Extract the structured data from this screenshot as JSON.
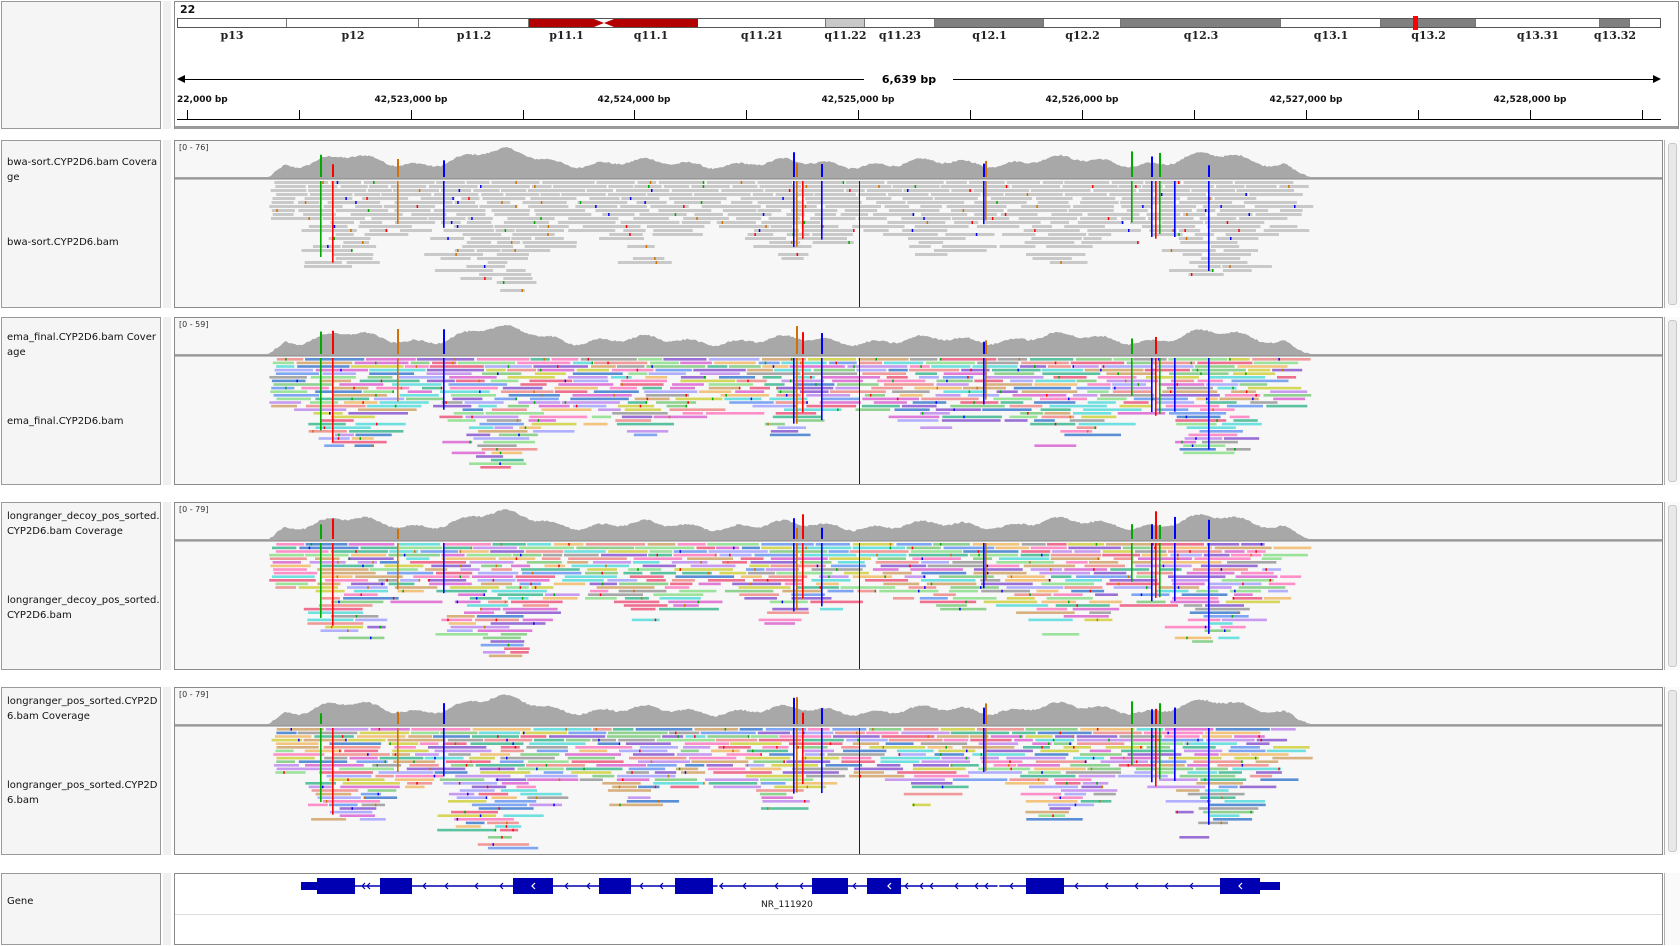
{
  "chromosome": "22",
  "span_label": "6,639 bp",
  "cytobands": [
    {
      "name": "p13",
      "stain": "gneg"
    },
    {
      "name": "p12",
      "stain": "gneg"
    },
    {
      "name": "p11.2",
      "stain": "gneg"
    },
    {
      "name": "p11.1",
      "stain": "acen"
    },
    {
      "name": "q11.1",
      "stain": "acen"
    },
    {
      "name": "q11.21",
      "stain": "gneg"
    },
    {
      "name": "q11.22",
      "stain": "gpos25"
    },
    {
      "name": "q11.23",
      "stain": "gneg"
    },
    {
      "name": "q12.1",
      "stain": "gpos50"
    },
    {
      "name": "q12.2",
      "stain": "gneg"
    },
    {
      "name": "q12.3",
      "stain": "gpos50"
    },
    {
      "name": "q13.1",
      "stain": "gneg"
    },
    {
      "name": "q13.2",
      "stain": "gpos50"
    },
    {
      "name": "q13.31",
      "stain": "gneg"
    },
    {
      "name": "q13.32",
      "stain": "gpos50"
    }
  ],
  "ruler_ticks": [
    "22,000 bp",
    "42,523,000 bp",
    "42,524,000 bp",
    "42,525,000 bp",
    "42,526,000 bp",
    "42,527,000 bp",
    "42,528,000 bp"
  ],
  "tracks": [
    {
      "coverage_name": "bwa-sort.CYP2D6.bam Coverage",
      "alignment_name": "bwa-sort.CYP2D6.bam",
      "range": "[0 - 76]",
      "style": "gray"
    },
    {
      "coverage_name": "ema_final.CYP2D6.bam Coverage",
      "alignment_name": "ema_final.CYP2D6.bam",
      "range": "[0 - 59]",
      "style": "color"
    },
    {
      "coverage_name": "longranger_decoy_pos_sorted.CYP2D6.bam Coverage",
      "alignment_name": "longranger_decoy_pos_sorted.CYP2D6.bam",
      "range": "[0 - 79]",
      "style": "color"
    },
    {
      "coverage_name": "longranger_pos_sorted.CYP2D6.bam Coverage",
      "alignment_name": "longranger_pos_sorted.CYP2D6.bam",
      "range": "[0 - 79]",
      "style": "color"
    }
  ],
  "gene_track": {
    "name": "Gene",
    "transcript": "NR_111920"
  },
  "colors": {
    "acen": "#b30000",
    "gpos25": "#c8c8c8",
    "gpos50": "#808080",
    "coverage": "#a8a8a8",
    "gene": "#0000b2",
    "read_gray": "#c9c9c9"
  }
}
